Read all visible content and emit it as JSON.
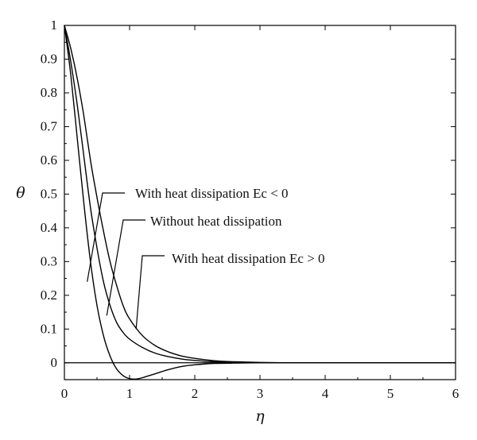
{
  "chart_data": {
    "type": "line",
    "xlabel": "η",
    "ylabel": "θ",
    "xlim": [
      0,
      6
    ],
    "ylim": [
      -0.05,
      1
    ],
    "x_ticks": [
      "0",
      "1",
      "2",
      "3",
      "4",
      "5",
      "6"
    ],
    "y_ticks": [
      "0",
      "0.1",
      "0.2",
      "0.3",
      "0.4",
      "0.5",
      "0.6",
      "0.7",
      "0.8",
      "0.9",
      "1"
    ],
    "grid": false,
    "series": [
      {
        "name": "With heat dissipation Ec < 0",
        "x": [
          0,
          0.1,
          0.2,
          0.3,
          0.4,
          0.5,
          0.6,
          0.7,
          0.8,
          0.9,
          1.0,
          1.1,
          1.2,
          1.4,
          1.6,
          1.8,
          2.0,
          2.3,
          2.6,
          3.0,
          3.5,
          4.0,
          5.0,
          6.0
        ],
        "y": [
          1.0,
          0.85,
          0.66,
          0.47,
          0.3,
          0.17,
          0.08,
          0.02,
          -0.018,
          -0.038,
          -0.047,
          -0.048,
          -0.044,
          -0.032,
          -0.02,
          -0.011,
          -0.006,
          -0.002,
          -0.001,
          0.0,
          0.0,
          0.0,
          0.0,
          0.0
        ]
      },
      {
        "name": "Without heat dissipation",
        "x": [
          0,
          0.1,
          0.2,
          0.3,
          0.4,
          0.5,
          0.6,
          0.7,
          0.8,
          0.9,
          1.0,
          1.2,
          1.4,
          1.6,
          1.8,
          2.0,
          2.3,
          2.6,
          3.0,
          3.5,
          4.0,
          5.0,
          6.0
        ],
        "y": [
          1.0,
          0.89,
          0.76,
          0.61,
          0.46,
          0.34,
          0.24,
          0.17,
          0.12,
          0.09,
          0.07,
          0.045,
          0.028,
          0.018,
          0.011,
          0.007,
          0.003,
          0.001,
          0.0,
          0.0,
          0.0,
          0.0,
          0.0
        ]
      },
      {
        "name": "With heat dissipation Ec > 0",
        "x": [
          0,
          0.1,
          0.2,
          0.3,
          0.4,
          0.5,
          0.6,
          0.7,
          0.8,
          0.9,
          1.0,
          1.2,
          1.4,
          1.6,
          1.8,
          2.0,
          2.3,
          2.6,
          3.0,
          3.5,
          4.0,
          5.0,
          6.0
        ],
        "y": [
          1.0,
          0.93,
          0.84,
          0.73,
          0.6,
          0.49,
          0.39,
          0.3,
          0.23,
          0.17,
          0.13,
          0.08,
          0.05,
          0.032,
          0.02,
          0.013,
          0.006,
          0.003,
          0.001,
          0.0,
          0.0,
          0.0,
          0.0
        ]
      }
    ],
    "annotations": [
      {
        "text": "With heat dissipation Ec < 0",
        "x": 0.35,
        "y": 0.24,
        "series": 0
      },
      {
        "text": "Without heat dissipation",
        "x": 0.65,
        "y": 0.14,
        "series": 1
      },
      {
        "text": "With heat dissipation Ec > 0",
        "x": 1.1,
        "y": 0.1,
        "series": 2
      }
    ]
  }
}
